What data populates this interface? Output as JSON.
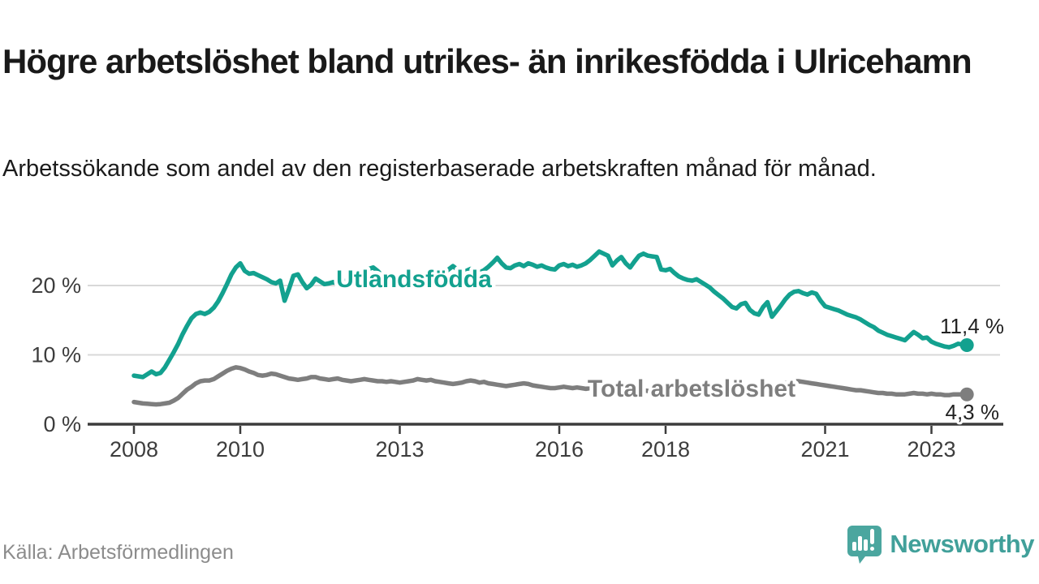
{
  "header": {
    "title": "Högre arbetslöshet bland utrikes- än inrikesfödda i Ulricehamn",
    "subtitle": "Arbetssökande som andel av den registerbaserade arbetskraften månad för månad."
  },
  "footer": {
    "source": "Källa: Arbetsförmedlingen",
    "brand": "Newsworthy"
  },
  "colors": {
    "accent_teal": "#13a18f",
    "line_gray": "#7e7e7e",
    "logo_teal": "#4ba69f",
    "gridline": "#d8d8d8",
    "axis": "#3c3c3c"
  },
  "chart_data": {
    "type": "line",
    "title": "Högre arbetslöshet bland utrikes- än inrikesfödda i Ulricehamn",
    "subtitle": "Arbetssökande som andel av den registerbaserade arbetskraften månad för månad.",
    "x_unit": "month",
    "x_start_year": 2008,
    "x_end": "2023-09",
    "ylim": [
      0,
      26
    ],
    "grid": "horizontal",
    "yticks": [
      {
        "value": 0,
        "label": "0 %"
      },
      {
        "value": 10,
        "label": "10 %"
      },
      {
        "value": 20,
        "label": "20 %"
      }
    ],
    "xticks": [
      {
        "year": 2008,
        "label": "2008"
      },
      {
        "year": 2010,
        "label": "2010"
      },
      {
        "year": 2013,
        "label": "2013"
      },
      {
        "year": 2016,
        "label": "2016"
      },
      {
        "year": 2018,
        "label": "2018"
      },
      {
        "year": 2021,
        "label": "2021"
      },
      {
        "year": 2023,
        "label": "2023"
      }
    ],
    "series": [
      {
        "name": "Utlandsfödda",
        "color": "#13a18f",
        "end_label": "11,4 %",
        "end_value": 11.4,
        "values": [
          7.0,
          6.9,
          6.8,
          7.2,
          7.6,
          7.2,
          7.4,
          8.2,
          9.3,
          10.4,
          11.6,
          13.0,
          14.2,
          15.3,
          15.9,
          16.1,
          15.9,
          16.2,
          16.8,
          17.7,
          18.9,
          20.2,
          21.6,
          22.6,
          23.2,
          22.1,
          21.7,
          21.8,
          21.5,
          21.2,
          20.9,
          20.5,
          20.3,
          20.7,
          17.8,
          19.5,
          21.4,
          21.6,
          20.5,
          19.6,
          20.1,
          21.0,
          20.6,
          20.2,
          20.3,
          20.5,
          20.4,
          20.6,
          20.7,
          21.0,
          20.8,
          21.2,
          21.8,
          22.4,
          22.6,
          22.1,
          21.4,
          20.9,
          21.1,
          21.3,
          21.2,
          21.4,
          21.6,
          21.3,
          21.1,
          21.5,
          21.8,
          22.0,
          21.7,
          21.5,
          21.8,
          22.3,
          22.8,
          22.3,
          21.9,
          22.1,
          22.4,
          22.2,
          21.9,
          22.2,
          22.7,
          23.3,
          24.0,
          23.2,
          22.6,
          22.5,
          22.9,
          23.1,
          22.8,
          23.2,
          23.0,
          22.7,
          22.9,
          22.6,
          22.4,
          22.3,
          22.9,
          23.1,
          22.8,
          23.0,
          22.7,
          22.9,
          23.2,
          23.7,
          24.3,
          24.9,
          24.6,
          24.3,
          22.9,
          23.6,
          24.1,
          23.2,
          22.6,
          23.5,
          24.3,
          24.6,
          24.3,
          24.2,
          24.1,
          22.3,
          22.2,
          22.4,
          21.8,
          21.3,
          21.0,
          20.8,
          20.7,
          20.9,
          20.5,
          20.1,
          19.7,
          19.1,
          18.6,
          18.1,
          17.5,
          16.9,
          16.7,
          17.3,
          17.5,
          16.5,
          16.0,
          15.8,
          16.9,
          17.6,
          15.5,
          16.3,
          17.1,
          18.0,
          18.7,
          19.1,
          19.2,
          18.9,
          18.7,
          19.0,
          18.8,
          17.8,
          17.0,
          16.8,
          16.6,
          16.4,
          16.1,
          15.8,
          15.6,
          15.4,
          15.1,
          14.7,
          14.3,
          14.0,
          13.5,
          13.2,
          12.9,
          12.7,
          12.5,
          12.3,
          12.1,
          12.7,
          13.3,
          12.9,
          12.4,
          12.5,
          11.9,
          11.6,
          11.4,
          11.2,
          11.1,
          11.3,
          11.6,
          11.5,
          11.4
        ]
      },
      {
        "name": "Total arbetslöshet",
        "color": "#7e7e7e",
        "end_label": "4,3 %",
        "end_value": 4.3,
        "values": [
          3.2,
          3.1,
          3.0,
          2.95,
          2.9,
          2.85,
          2.9,
          3.0,
          3.1,
          3.4,
          3.8,
          4.4,
          5.0,
          5.4,
          5.9,
          6.2,
          6.3,
          6.3,
          6.5,
          6.9,
          7.3,
          7.7,
          8.0,
          8.2,
          8.1,
          7.9,
          7.6,
          7.4,
          7.1,
          7.0,
          7.1,
          7.3,
          7.2,
          7.0,
          6.8,
          6.6,
          6.5,
          6.4,
          6.5,
          6.6,
          6.8,
          6.8,
          6.6,
          6.5,
          6.4,
          6.5,
          6.6,
          6.4,
          6.3,
          6.2,
          6.3,
          6.4,
          6.5,
          6.4,
          6.3,
          6.2,
          6.2,
          6.1,
          6.2,
          6.1,
          6.0,
          6.1,
          6.2,
          6.3,
          6.5,
          6.4,
          6.3,
          6.4,
          6.2,
          6.1,
          6.0,
          5.9,
          5.8,
          5.9,
          6.0,
          6.2,
          6.3,
          6.2,
          6.0,
          6.1,
          5.9,
          5.8,
          5.7,
          5.6,
          5.5,
          5.6,
          5.7,
          5.8,
          5.9,
          5.8,
          5.6,
          5.5,
          5.4,
          5.3,
          5.2,
          5.2,
          5.3,
          5.4,
          5.3,
          5.2,
          5.3,
          5.2,
          5.1,
          5.2,
          5.1,
          5.0,
          5.0,
          4.9,
          5.0,
          5.1,
          5.0,
          4.9,
          4.9,
          4.8,
          4.8,
          4.9,
          4.8,
          4.7,
          4.7,
          4.6,
          4.7,
          4.7,
          4.6,
          4.6,
          4.5,
          4.5,
          4.4,
          4.5,
          4.4,
          4.4,
          4.3,
          4.4,
          4.5,
          4.5,
          4.4,
          4.4,
          4.5,
          4.5,
          4.6,
          4.6,
          4.5,
          4.6,
          4.7,
          4.8,
          5.0,
          5.3,
          5.6,
          5.9,
          6.1,
          6.2,
          6.2,
          6.1,
          6.0,
          5.9,
          5.8,
          5.7,
          5.6,
          5.5,
          5.4,
          5.3,
          5.2,
          5.1,
          5.0,
          4.9,
          4.9,
          4.8,
          4.7,
          4.6,
          4.5,
          4.5,
          4.4,
          4.4,
          4.3,
          4.3,
          4.3,
          4.4,
          4.5,
          4.4,
          4.4,
          4.3,
          4.4,
          4.3,
          4.3,
          4.2,
          4.2,
          4.3,
          4.3,
          4.3,
          4.3
        ]
      }
    ]
  }
}
